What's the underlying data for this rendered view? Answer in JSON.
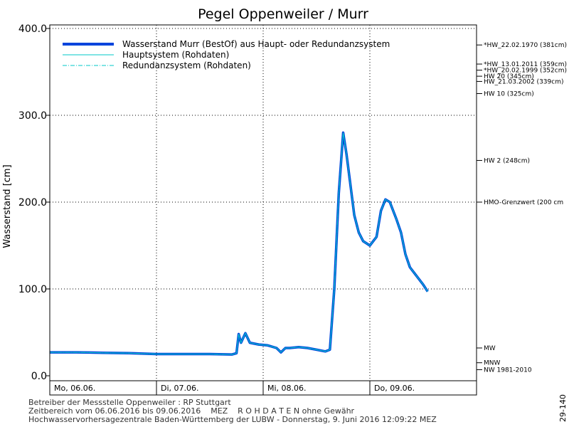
{
  "chart_data": {
    "type": "line",
    "title": "Pegel Oppenweiler / Murr",
    "ylabel": "Wasserstand [cm]",
    "ylim": [
      0,
      400
    ],
    "yticks": [
      {
        "value": 0,
        "label": "0.0"
      },
      {
        "value": 100,
        "label": "100.0"
      },
      {
        "value": 200,
        "label": "200.0"
      },
      {
        "value": 300,
        "label": "300.0"
      },
      {
        "value": 400,
        "label": "400.0"
      }
    ],
    "xlim": [
      "2016-06-06T00:00",
      "2016-06-10T00:00"
    ],
    "days": [
      {
        "date": "2016-06-06",
        "label": "Mo, 06.06."
      },
      {
        "date": "2016-06-07",
        "label": "Di, 07.06."
      },
      {
        "date": "2016-06-08",
        "label": "Mi, 08.06."
      },
      {
        "date": "2016-06-09",
        "label": "Do, 09.06."
      }
    ],
    "grid": true,
    "legend_position": "top-left",
    "series": [
      {
        "name": "Wasserstand Murr  (BestOf) aus Haupt- oder Redundanzsystem",
        "color": "#0044dd",
        "style": "thick"
      },
      {
        "name": "Hauptsystem (Rohdaten)",
        "color": "#00c8c8",
        "style": "thin"
      },
      {
        "name": "Redundanzsystem (Rohdaten)",
        "color": "#00c8c8",
        "style": "dash-dot"
      }
    ],
    "x": [
      "2016-06-06T00:00",
      "2016-06-06T06:00",
      "2016-06-06T12:00",
      "2016-06-06T18:00",
      "2016-06-07T00:00",
      "2016-06-07T06:00",
      "2016-06-07T12:00",
      "2016-06-07T17:00",
      "2016-06-07T18:00",
      "2016-06-07T18:30",
      "2016-06-07T19:00",
      "2016-06-07T20:00",
      "2016-06-07T21:00",
      "2016-06-07T23:00",
      "2016-06-08T01:00",
      "2016-06-08T03:00",
      "2016-06-08T04:00",
      "2016-06-08T05:00",
      "2016-06-08T06:00",
      "2016-06-08T08:00",
      "2016-06-08T10:00",
      "2016-06-08T12:00",
      "2016-06-08T14:00",
      "2016-06-08T15:00",
      "2016-06-08T16:00",
      "2016-06-08T17:00",
      "2016-06-08T18:00",
      "2016-06-08T18:45",
      "2016-06-08T19:30",
      "2016-06-08T20:30",
      "2016-06-08T21:30",
      "2016-06-08T22:30",
      "2016-06-09T00:00",
      "2016-06-09T01:30",
      "2016-06-09T02:30",
      "2016-06-09T03:30",
      "2016-06-09T04:30",
      "2016-06-09T06:00",
      "2016-06-09T07:00",
      "2016-06-09T08:00",
      "2016-06-09T09:00",
      "2016-06-09T10:30",
      "2016-06-09T12:00",
      "2016-06-09T13:00"
    ],
    "values": [
      27,
      27,
      26.5,
      26,
      25,
      25,
      25,
      24.5,
      26,
      48,
      38,
      49,
      38,
      36,
      35,
      32,
      27,
      32,
      32,
      33,
      32,
      30,
      28,
      30,
      100,
      210,
      280,
      255,
      225,
      185,
      165,
      155,
      150,
      160,
      190,
      203,
      200,
      180,
      165,
      140,
      125,
      115,
      105,
      97
    ],
    "reference_levels": [
      {
        "value": 381,
        "label": "*HW_22.02.1970 (381cm)"
      },
      {
        "value": 359,
        "label": "*HW_13.01.2011 (359cm)"
      },
      {
        "value": 352,
        "label": "*HW_20.02.1999 (352cm)"
      },
      {
        "value": 345,
        "label": "HW 20 (345cm)"
      },
      {
        "value": 339,
        "label": "HW_21.03.2002 (339cm)"
      },
      {
        "value": 325,
        "label": "HW 10 (325cm)"
      },
      {
        "value": 248,
        "label": "HW 2 (248cm)"
      },
      {
        "value": 200,
        "label": "HMO-Grenzwert (200 cm"
      },
      {
        "value": 32,
        "label": "MW"
      },
      {
        "value": 15,
        "label": "MNW"
      },
      {
        "value": 7,
        "label": "NW 1981-2010"
      }
    ]
  },
  "footer": {
    "line1": "Betreiber der Messstelle Oppenweiler : RP Stuttgart",
    "line2": "Zeitbereich vom 06.06.2016 bis 09.06.2016    MEZ    R O H D A T E N ohne Gewähr",
    "line3": "Hochwasservorhersagezentrale Baden-Württemberg der LUBW - Donnerstag, 9. Juni 2016 12:09:22 MEZ"
  },
  "doc_id": "29-140"
}
